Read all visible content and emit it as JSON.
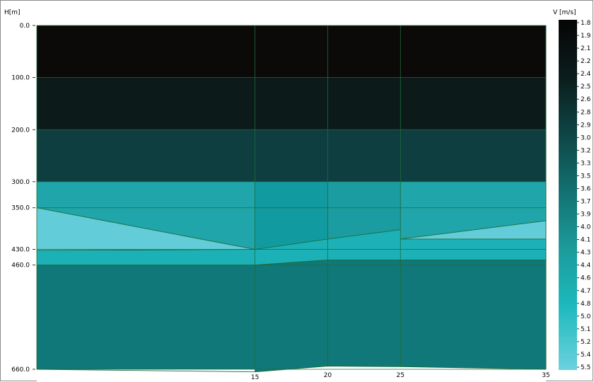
{
  "chart_data": {
    "type": "heatmap",
    "ylabel": "H[m]",
    "colorbar_label": "V [m/s]",
    "yaxis_ticks": [
      "0.0",
      "100.0",
      "200.0",
      "300.0",
      "350.0",
      "430.0",
      "460.0",
      "660.0"
    ],
    "ytick_values": [
      0,
      100,
      200,
      300,
      350,
      430,
      460,
      660
    ],
    "xaxis_ticks": [
      "15",
      "20",
      "25",
      "35"
    ],
    "xtick_values": [
      15,
      20,
      25,
      35
    ],
    "xlim": [
      0,
      35
    ],
    "ylim": [
      0,
      660
    ],
    "colorbar_ticks": [
      "1.8",
      "1.9",
      "2.1",
      "2.2",
      "2.4",
      "2.5",
      "2.6",
      "2.8",
      "2.9",
      "3.0",
      "3.2",
      "3.3",
      "3.5",
      "3.6",
      "3.7",
      "3.9",
      "4.0",
      "4.1",
      "4.3",
      "4.4",
      "4.6",
      "4.7",
      "4.8",
      "5.0",
      "5.1",
      "5.2",
      "5.4",
      "5.5"
    ],
    "colorbar_stops": [
      {
        "v": 1.8,
        "color": "#050505"
      },
      {
        "v": 2.4,
        "color": "#0c1c1c"
      },
      {
        "v": 3.0,
        "color": "#0f4444"
      },
      {
        "v": 3.6,
        "color": "#127070"
      },
      {
        "v": 4.2,
        "color": "#1c9a9a"
      },
      {
        "v": 4.8,
        "color": "#1cb8bc"
      },
      {
        "v": 5.5,
        "color": "#6bd2de"
      }
    ],
    "columns_x": [
      0,
      15,
      20,
      25,
      35
    ],
    "layers": [
      {
        "fill": "#0c0909",
        "top": [
          0,
          0,
          0,
          0,
          0
        ],
        "bottom": [
          100,
          100,
          100,
          100,
          100
        ]
      },
      {
        "fill": "#0c1a1a",
        "top": [
          100,
          100,
          100,
          100,
          100
        ],
        "bottom": [
          200,
          200,
          200,
          200,
          200
        ]
      },
      {
        "fill": "#0e3e40",
        "top": [
          200,
          200,
          200,
          200,
          200
        ],
        "bottom": [
          300,
          300,
          300,
          300,
          300
        ]
      },
      {
        "fill": "#1fa5aa",
        "top": [
          300,
          300,
          300,
          300,
          300
        ],
        "bottom": [
          460,
          460,
          460,
          460,
          460
        ]
      },
      {
        "fill": "#107878",
        "top": [
          460,
          460,
          460,
          460,
          460
        ],
        "bottom": [
          660,
          660,
          660,
          660,
          660
        ]
      }
    ],
    "polygons": [
      {
        "fill": "#62cdd8",
        "points": [
          [
            0,
            350
          ],
          [
            15,
            430
          ],
          [
            0,
            432
          ]
        ]
      },
      {
        "fill": "#1cb1b7",
        "points": [
          [
            0,
            432
          ],
          [
            15,
            430
          ],
          [
            15,
            460
          ],
          [
            0,
            460
          ]
        ]
      },
      {
        "fill": "#1cb1b7",
        "points": [
          [
            15,
            430
          ],
          [
            20,
            410
          ],
          [
            20,
            450
          ],
          [
            15,
            460
          ]
        ]
      },
      {
        "fill": "#1cb1b7",
        "points": [
          [
            20,
            410
          ],
          [
            25,
            392
          ],
          [
            25,
            450
          ],
          [
            20,
            450
          ]
        ]
      },
      {
        "fill": "#1cb1b7",
        "points": [
          [
            25,
            410
          ],
          [
            35,
            410
          ],
          [
            35,
            450
          ],
          [
            25,
            450
          ]
        ]
      },
      {
        "fill": "#62cdd8",
        "points": [
          [
            25,
            410
          ],
          [
            35,
            375
          ],
          [
            35,
            410
          ]
        ]
      },
      {
        "fill": "#119aa0",
        "points": [
          [
            15,
            300
          ],
          [
            20,
            300
          ],
          [
            20,
            410
          ],
          [
            15,
            430
          ]
        ]
      },
      {
        "fill": "#1a9ca1",
        "points": [
          [
            20,
            300
          ],
          [
            25,
            300
          ],
          [
            25,
            392
          ],
          [
            20,
            410
          ]
        ]
      },
      {
        "fill": "#107878",
        "points": [
          [
            15,
            460
          ],
          [
            20,
            450
          ],
          [
            25,
            450
          ],
          [
            35,
            450
          ],
          [
            35,
            660
          ],
          [
            25,
            655
          ],
          [
            20,
            654
          ],
          [
            15,
            665
          ]
        ]
      }
    ],
    "lines": [
      [
        [
          0,
          350
        ],
        [
          15,
          430
        ],
        [
          20,
          410
        ],
        [
          25,
          392
        ]
      ],
      [
        [
          25,
          410
        ],
        [
          35,
          375
        ]
      ],
      [
        [
          25,
          410
        ],
        [
          35,
          410
        ]
      ],
      [
        [
          0,
          432
        ],
        [
          15,
          430
        ]
      ],
      [
        [
          0,
          460
        ],
        [
          15,
          460
        ],
        [
          20,
          450
        ],
        [
          25,
          450
        ],
        [
          35,
          450
        ]
      ]
    ],
    "bottom_profile": [
      [
        0,
        660
      ],
      [
        15,
        665
      ],
      [
        20,
        654
      ],
      [
        25,
        655
      ],
      [
        35,
        660
      ]
    ],
    "grid": true
  }
}
